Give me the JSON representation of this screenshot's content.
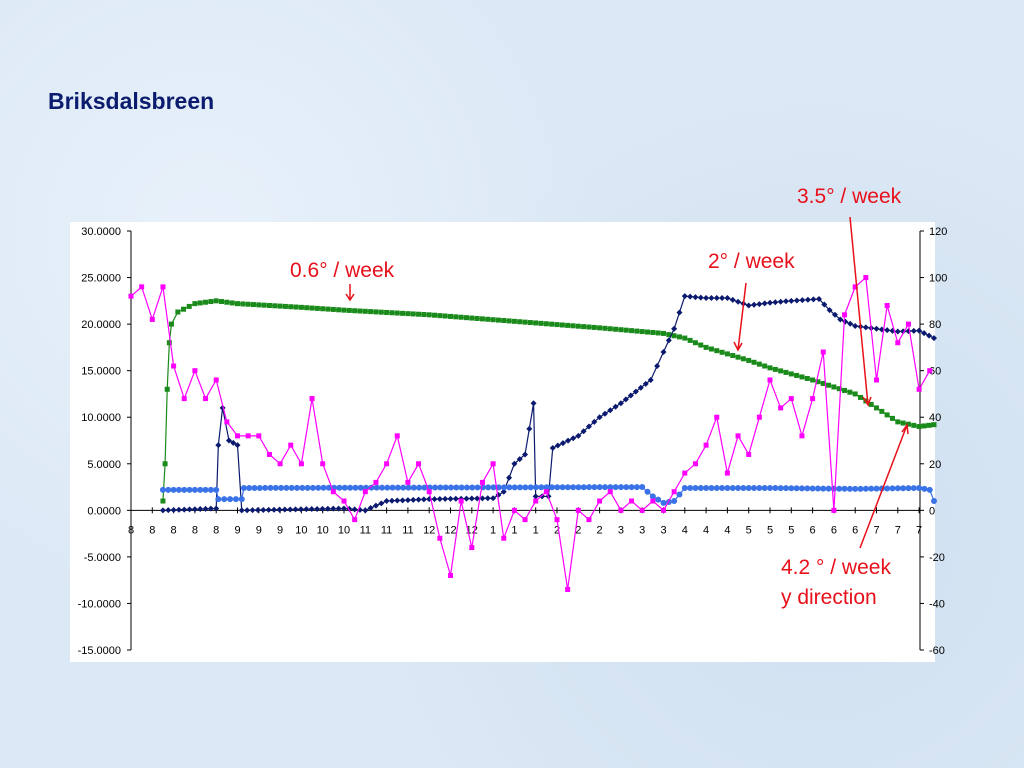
{
  "title": "Briksdalsbreen",
  "chart_data": {
    "type": "line",
    "title": "Briksdalsbreen",
    "y_left": {
      "range": [
        -15,
        30
      ],
      "ticks": [
        "30.0000",
        "25.0000",
        "20.0000",
        "15.0000",
        "10.0000",
        "5.0000",
        "0.0000",
        "-5.0000",
        "-10.0000",
        "-15.0000"
      ]
    },
    "y_right": {
      "range": [
        -60,
        120
      ],
      "ticks": [
        "120",
        "100",
        "80",
        "60",
        "40",
        "20",
        "0",
        "-20",
        "-40",
        "-60"
      ]
    },
    "x_tick_labels": [
      "8",
      "8",
      "8",
      "8",
      "8",
      "9",
      "9",
      "9",
      "10",
      "10",
      "10",
      "11",
      "11",
      "11",
      "12",
      "12",
      "12",
      "1",
      "1",
      "1",
      "2",
      "2",
      "2",
      "3",
      "3",
      "3",
      "4",
      "4",
      "4",
      "5",
      "5",
      "5",
      "6",
      "6",
      "6",
      "7",
      "7",
      "7"
    ],
    "grid": false,
    "series": [
      {
        "name": "green",
        "color": "#1a8a1a",
        "marker": "square",
        "points": [
          [
            1.5,
            1
          ],
          [
            1.6,
            5
          ],
          [
            1.7,
            13
          ],
          [
            1.8,
            18
          ],
          [
            1.9,
            20
          ],
          [
            2.2,
            21.3
          ],
          [
            3,
            22.2
          ],
          [
            4,
            22.5
          ],
          [
            5,
            22.2
          ],
          [
            8,
            21.8
          ],
          [
            10,
            21.5
          ],
          [
            14,
            21
          ],
          [
            18,
            20.3
          ],
          [
            22,
            19.6
          ],
          [
            25,
            19
          ],
          [
            26,
            18.5
          ],
          [
            27,
            17.5
          ],
          [
            28,
            16.8
          ],
          [
            29,
            16.1
          ],
          [
            30,
            15.3
          ],
          [
            32,
            14
          ],
          [
            34,
            12.5
          ],
          [
            35,
            11
          ],
          [
            36,
            9.5
          ],
          [
            37,
            9
          ],
          [
            37.7,
            9.2
          ]
        ]
      },
      {
        "name": "navy",
        "color": "#0b1a6e",
        "marker": "diamond",
        "points": [
          [
            1.5,
            0
          ],
          [
            4,
            0.2
          ],
          [
            4.1,
            7
          ],
          [
            4.3,
            11
          ],
          [
            4.6,
            7.5
          ],
          [
            5,
            7
          ],
          [
            5.2,
            0
          ],
          [
            10,
            0.2
          ],
          [
            11,
            0
          ],
          [
            12,
            1
          ],
          [
            14,
            1.2
          ],
          [
            17,
            1.3
          ],
          [
            17.5,
            2
          ],
          [
            18,
            5
          ],
          [
            18.5,
            6
          ],
          [
            18.9,
            11.5
          ],
          [
            19,
            1.5
          ],
          [
            19.6,
            1.5
          ],
          [
            19.8,
            6.7
          ],
          [
            21,
            8
          ],
          [
            22,
            10
          ],
          [
            23,
            11.5
          ],
          [
            24.4,
            14
          ],
          [
            25,
            17
          ],
          [
            25.5,
            19.5
          ],
          [
            26,
            23
          ],
          [
            27,
            22.8
          ],
          [
            28,
            22.8
          ],
          [
            29,
            22
          ],
          [
            30,
            22.3
          ],
          [
            31,
            22.5
          ],
          [
            32.3,
            22.7
          ],
          [
            32.8,
            21.5
          ],
          [
            33.3,
            20.5
          ],
          [
            34,
            19.8
          ],
          [
            35,
            19.5
          ],
          [
            36,
            19.2
          ],
          [
            37,
            19.3
          ],
          [
            37.7,
            18.5
          ]
        ]
      },
      {
        "name": "light-blue",
        "color": "#3a73e8",
        "marker": "circle",
        "points": [
          [
            1.5,
            2.2
          ],
          [
            4,
            2.2
          ],
          [
            4.1,
            1.2
          ],
          [
            5.2,
            1.2
          ],
          [
            5.3,
            2.4
          ],
          [
            24,
            2.5
          ],
          [
            24.5,
            1.5
          ],
          [
            25,
            0.8
          ],
          [
            25.5,
            1
          ],
          [
            26,
            2.4
          ],
          [
            30,
            2.4
          ],
          [
            34,
            2.3
          ],
          [
            37,
            2.4
          ],
          [
            37.5,
            2.2
          ],
          [
            37.7,
            1
          ]
        ]
      },
      {
        "name": "magenta",
        "color": "#ff00ff",
        "marker": "square",
        "points": [
          [
            0,
            23
          ],
          [
            0.5,
            24
          ],
          [
            1,
            20.5
          ],
          [
            1.5,
            24
          ],
          [
            2,
            15.5
          ],
          [
            2.5,
            12
          ],
          [
            3,
            15
          ],
          [
            3.5,
            12
          ],
          [
            4,
            14
          ],
          [
            4.5,
            9.5
          ],
          [
            5,
            8
          ],
          [
            5.5,
            8
          ],
          [
            6,
            8
          ],
          [
            6.5,
            6
          ],
          [
            7,
            5
          ],
          [
            7.5,
            7
          ],
          [
            8,
            5
          ],
          [
            8.5,
            12
          ],
          [
            9,
            5
          ],
          [
            9.5,
            2
          ],
          [
            10,
            1
          ],
          [
            10.5,
            -1
          ],
          [
            11,
            2
          ],
          [
            11.5,
            3
          ],
          [
            12,
            5
          ],
          [
            12.5,
            8
          ],
          [
            13,
            3
          ],
          [
            13.5,
            5
          ],
          [
            14,
            2
          ],
          [
            14.5,
            -3
          ],
          [
            15,
            -7
          ],
          [
            15.5,
            1
          ],
          [
            16,
            -4
          ],
          [
            16.5,
            3
          ],
          [
            17,
            5
          ],
          [
            17.5,
            -3
          ],
          [
            18,
            0
          ],
          [
            18.5,
            -1
          ],
          [
            19,
            1
          ],
          [
            19.5,
            2
          ],
          [
            20,
            -1
          ],
          [
            20.5,
            -8.5
          ],
          [
            21,
            0
          ],
          [
            21.5,
            -1
          ],
          [
            22,
            1
          ],
          [
            22.5,
            2
          ],
          [
            23,
            0
          ],
          [
            23.5,
            1
          ],
          [
            24,
            0
          ],
          [
            24.5,
            1
          ],
          [
            25,
            0
          ],
          [
            25.5,
            2
          ],
          [
            26,
            4
          ],
          [
            26.5,
            5
          ],
          [
            27,
            7
          ],
          [
            27.5,
            10
          ],
          [
            28,
            4
          ],
          [
            28.5,
            8
          ],
          [
            29,
            6
          ],
          [
            29.5,
            10
          ],
          [
            30,
            14
          ],
          [
            30.5,
            11
          ],
          [
            31,
            12
          ],
          [
            31.5,
            8
          ],
          [
            32,
            12
          ],
          [
            32.5,
            17
          ],
          [
            33,
            0
          ],
          [
            33.5,
            21
          ],
          [
            34,
            24
          ],
          [
            34.5,
            25
          ],
          [
            35,
            14
          ],
          [
            35.5,
            22
          ],
          [
            36,
            18
          ],
          [
            36.5,
            20
          ],
          [
            37,
            13
          ],
          [
            37.5,
            15
          ]
        ]
      }
    ],
    "annotations": [
      "0.6° / week",
      "2° / week",
      "3.5° / week",
      "4.2 ° / week y direction"
    ]
  }
}
